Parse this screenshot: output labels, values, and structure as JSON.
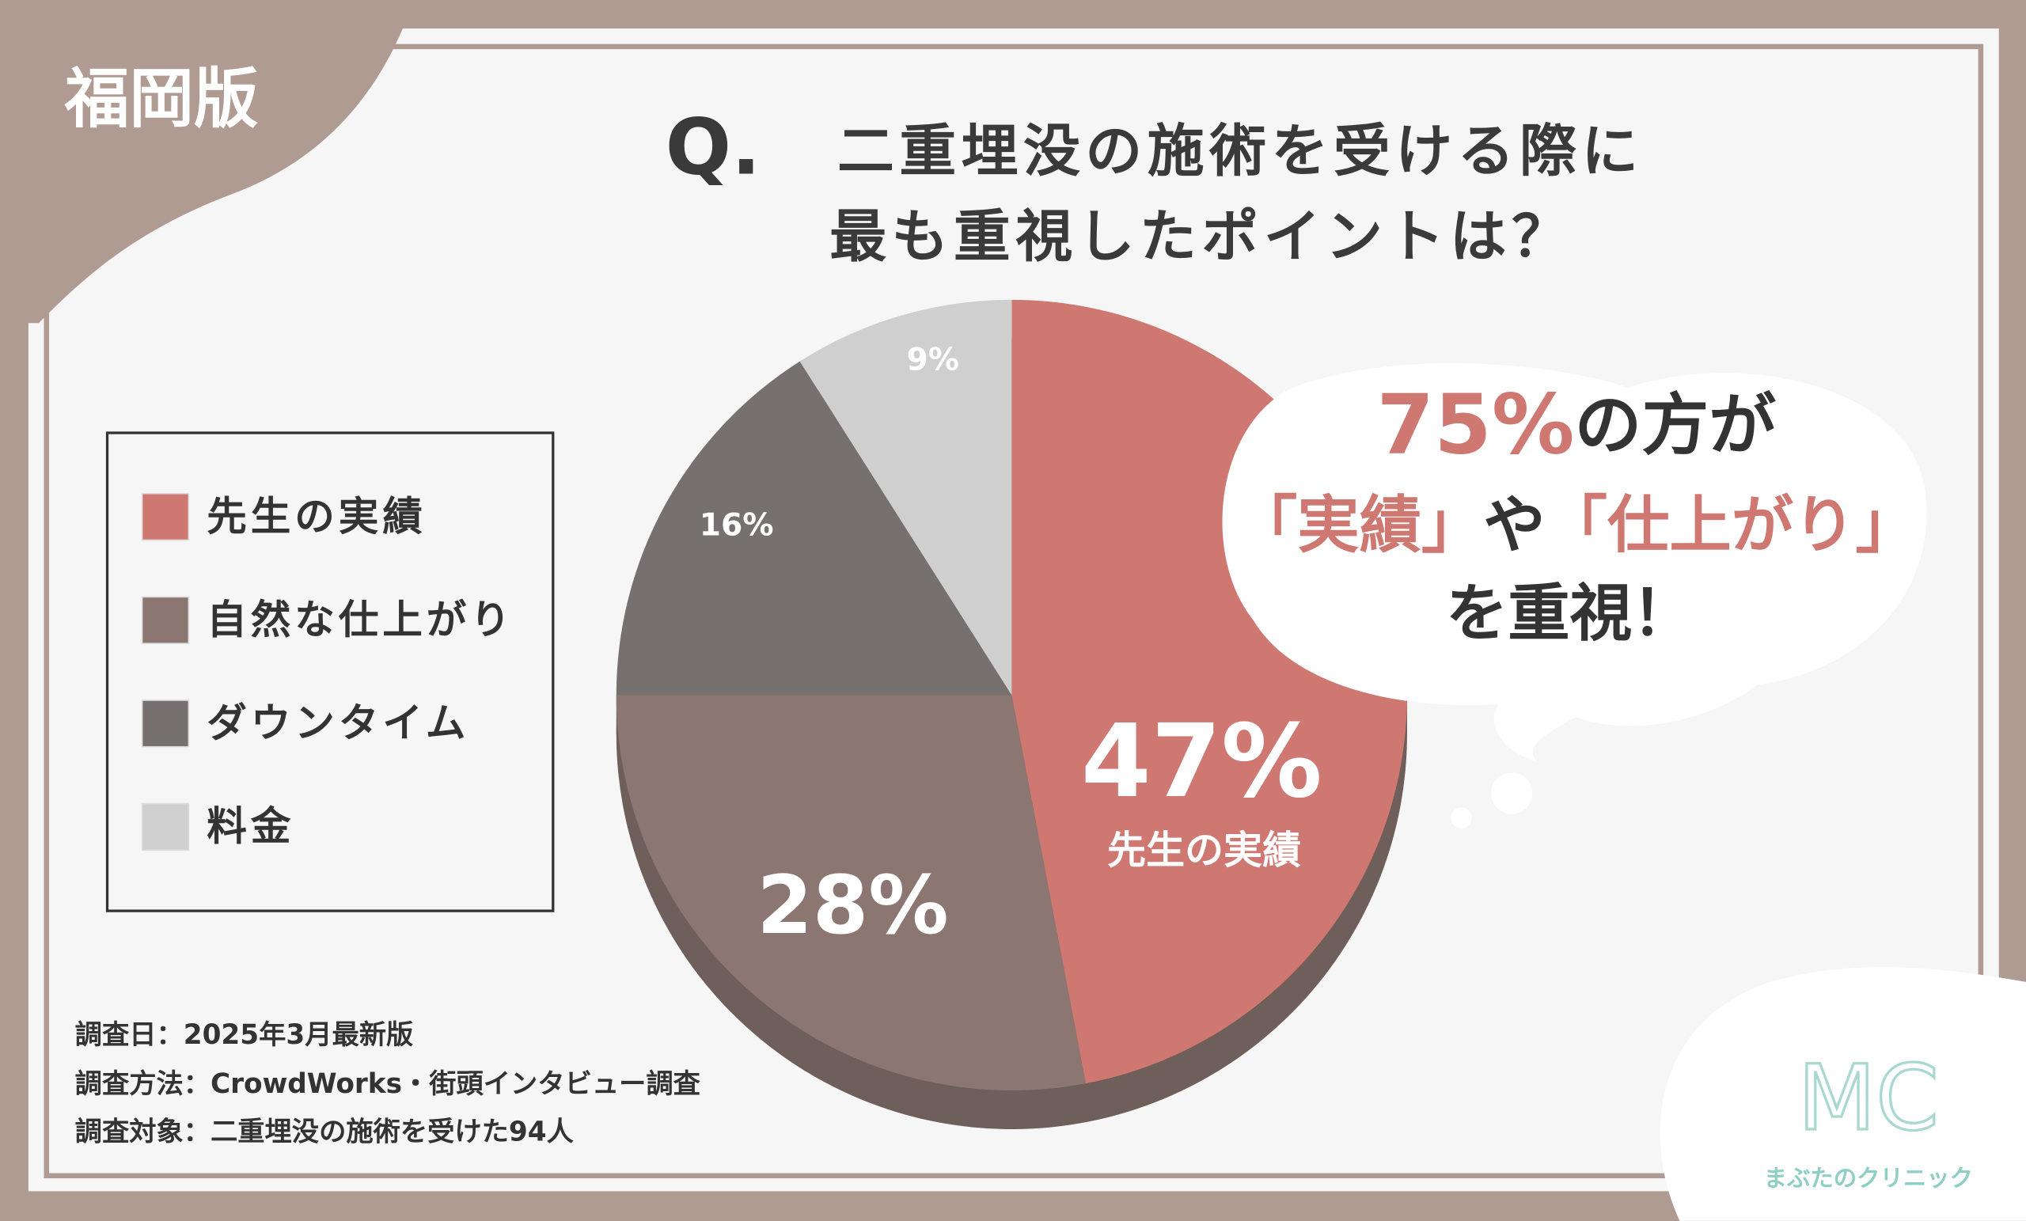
{
  "badge": "福岡版",
  "callout": [
    "75%",
    "の方が",
    "「実績」",
    "や",
    "「仕上がり」",
    "を重視！"
  ],
  "notes": [
    "調査日：2025年3月最新版",
    "調査方法：CrowdWorks・街頭インタビュー調査",
    "調査対象：二重埋没の施術を受けた94人"
  ],
  "logo": {
    "mark": "MC",
    "name": "まぶたのクリニック"
  },
  "chart_data": {
    "type": "pie",
    "title_prefix": "Q.",
    "title": [
      "二重埋没の施術を受ける際に",
      "最も重視したポイントは？"
    ],
    "categories": [
      "先生の実績",
      "自然な仕上がり",
      "ダウンタイム",
      "料金"
    ],
    "values": [
      47,
      28,
      16,
      9
    ],
    "value_labels": [
      "47%",
      "28%",
      "16%",
      "9%"
    ],
    "colors": [
      "#cf7872",
      "#8b7672",
      "#767170",
      "#d0cfcf"
    ],
    "legend": "left"
  }
}
